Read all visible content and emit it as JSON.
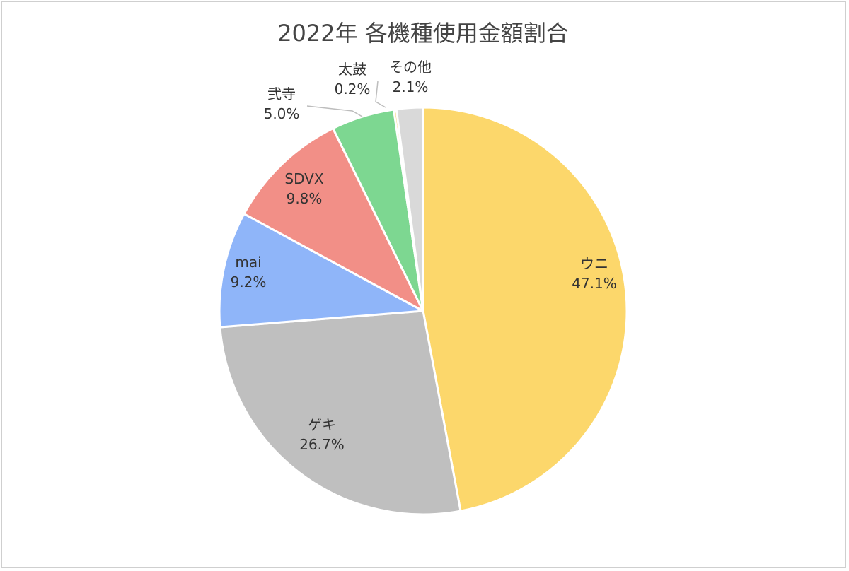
{
  "chart_data": {
    "type": "pie",
    "title": "2022年 各機種使用金額割合",
    "slices": [
      {
        "name": "ウニ",
        "value": 47.1,
        "label_value": "47.1%",
        "color": "#fcd76b"
      },
      {
        "name": "ゲキ",
        "value": 26.7,
        "label_value": "26.7%",
        "color": "#bfbfbf"
      },
      {
        "name": "mai",
        "value": 9.2,
        "label_value": "9.2%",
        "color": "#8fb5f9"
      },
      {
        "name": "SDVX",
        "value": 9.8,
        "label_value": "9.8%",
        "color": "#f28f87"
      },
      {
        "name": "弐寺",
        "value": 5.0,
        "label_value": "5.0%",
        "color": "#7dd791"
      },
      {
        "name": "太鼓",
        "value": 0.2,
        "label_value": "0.2%",
        "color": "#f6c242"
      },
      {
        "name": "その他",
        "value": 2.1,
        "label_value": "2.1%",
        "color": "#d9d9d9"
      }
    ],
    "start_angle_deg": 0,
    "direction": "clockwise",
    "slice_border_color": "#ffffff",
    "leader_line_color": "#bdbdbd",
    "legend": "none"
  }
}
